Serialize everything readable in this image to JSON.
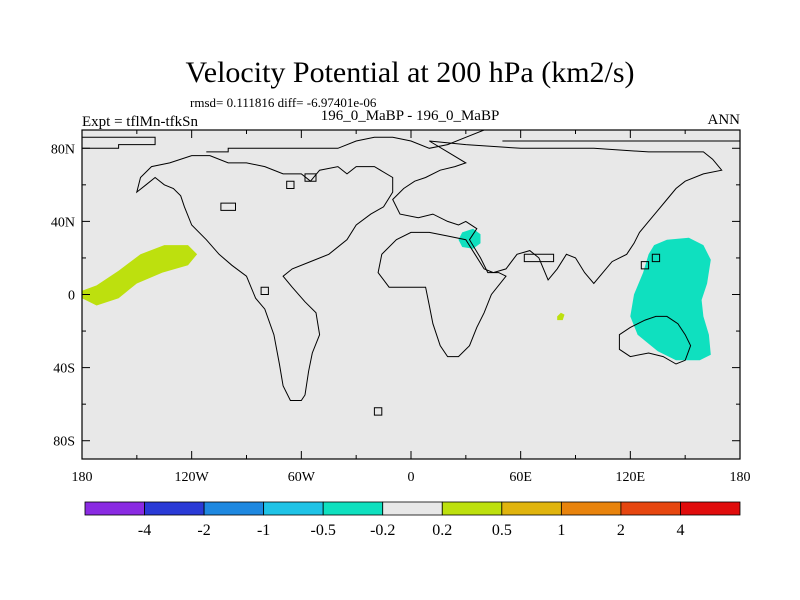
{
  "chart_data": {
    "type": "heatmap",
    "title": "Velocity Potential at 200 hPa (km2/s)",
    "stats_line": "rmsd= 0.111816 diff= -6.97401e-06",
    "left_label": "Expt = tflMn-tfkSn",
    "center_label": "196_0_MaBP - 196_0_MaBP",
    "right_label": "ANN",
    "x_ticks": [
      "180",
      "120W",
      "60W",
      "0",
      "60E",
      "120E",
      "180"
    ],
    "x_tick_values": [
      -180,
      -120,
      -60,
      0,
      60,
      120,
      180
    ],
    "y_ticks": [
      "80N",
      "40N",
      "0",
      "40S",
      "80S"
    ],
    "y_tick_values": [
      80,
      40,
      0,
      -40,
      -80
    ],
    "xlim": [
      -180,
      180
    ],
    "ylim": [
      -90,
      90
    ],
    "colorbar": {
      "colors": [
        "#8a2be2",
        "#2a3ad6",
        "#1e88e0",
        "#1fc3e6",
        "#0fe0bf",
        "#e8e8e8",
        "#bde00e",
        "#e0b40e",
        "#e8830c",
        "#e64610",
        "#e00c0c"
      ],
      "labels": [
        "-4",
        "-2",
        "-1",
        "-0.5",
        "-0.2",
        "0.2",
        "0.5",
        "1",
        "2",
        "4"
      ]
    },
    "background_color": "#e8e8e8",
    "filled_regions": [
      {
        "name": "pacific-positive",
        "level": "0.2 to 0.5",
        "color": "#bde00e",
        "points": [
          [
            -180,
            -2
          ],
          [
            -172,
            -6
          ],
          [
            -160,
            -2
          ],
          [
            -150,
            6
          ],
          [
            -136,
            12
          ],
          [
            -122,
            16
          ],
          [
            -117,
            22
          ],
          [
            -122,
            27
          ],
          [
            -135,
            27
          ],
          [
            -148,
            22
          ],
          [
            -160,
            13
          ],
          [
            -172,
            5
          ],
          [
            -180,
            2
          ]
        ]
      },
      {
        "name": "indian-small-positive",
        "level": "0.2 to 0.5",
        "color": "#bde00e",
        "points": [
          [
            80,
            -12
          ],
          [
            82,
            -10
          ],
          [
            84,
            -11
          ],
          [
            83,
            -14
          ],
          [
            80,
            -14
          ]
        ]
      },
      {
        "name": "mideast-negative",
        "level": "-0.5 to -0.2",
        "color": "#0fe0bf",
        "points": [
          [
            26,
            30
          ],
          [
            28,
            34
          ],
          [
            34,
            36
          ],
          [
            38,
            33
          ],
          [
            38,
            28
          ],
          [
            34,
            25
          ],
          [
            28,
            26
          ]
        ]
      },
      {
        "name": "westpacific-negative",
        "level": "-0.5 to -0.2",
        "color": "#0fe0bf",
        "points": [
          [
            133,
            27
          ],
          [
            140,
            30
          ],
          [
            152,
            31
          ],
          [
            160,
            27
          ],
          [
            164,
            19
          ],
          [
            162,
            6
          ],
          [
            159,
            -3
          ],
          [
            160,
            -12
          ],
          [
            163,
            -22
          ],
          [
            164,
            -33
          ],
          [
            158,
            -36
          ],
          [
            145,
            -36
          ],
          [
            135,
            -31
          ],
          [
            124,
            -22
          ],
          [
            120,
            -12
          ],
          [
            122,
            0
          ],
          [
            127,
            12
          ],
          [
            130,
            22
          ]
        ]
      }
    ],
    "contours": [
      {
        "name": "arctic-coast-top",
        "closed": false,
        "points": [
          [
            -180,
            86
          ],
          [
            -140,
            86
          ],
          [
            -140,
            82
          ],
          [
            -160,
            82
          ],
          [
            -160,
            80
          ],
          [
            -180,
            80
          ]
        ]
      },
      {
        "name": "greenland-arctic",
        "closed": false,
        "points": [
          [
            -112,
            78
          ],
          [
            -100,
            78
          ],
          [
            -100,
            80
          ],
          [
            -40,
            80
          ],
          [
            -30,
            84
          ],
          [
            -20,
            86
          ],
          [
            -10,
            86
          ],
          [
            0,
            84
          ],
          [
            10,
            80
          ],
          [
            20,
            82
          ],
          [
            30,
            86
          ],
          [
            40,
            90
          ]
        ]
      },
      {
        "name": "arctic-coast-east",
        "closed": false,
        "points": [
          [
            50,
            84
          ],
          [
            180,
            84
          ]
        ]
      },
      {
        "name": "americas",
        "closed": true,
        "points": [
          [
            -100,
            72
          ],
          [
            -90,
            72
          ],
          [
            -80,
            70
          ],
          [
            -70,
            66
          ],
          [
            -60,
            66
          ],
          [
            -55,
            62
          ],
          [
            -50,
            68
          ],
          [
            -40,
            70
          ],
          [
            -35,
            66
          ],
          [
            -30,
            70
          ],
          [
            -20,
            70
          ],
          [
            -10,
            64
          ],
          [
            -10,
            56
          ],
          [
            -15,
            48
          ],
          [
            -22,
            44
          ],
          [
            -30,
            38
          ],
          [
            -35,
            30
          ],
          [
            -45,
            22
          ],
          [
            -55,
            18
          ],
          [
            -65,
            14
          ],
          [
            -70,
            10
          ],
          [
            -65,
            4
          ],
          [
            -58,
            -4
          ],
          [
            -52,
            -10
          ],
          [
            -50,
            -22
          ],
          [
            -54,
            -32
          ],
          [
            -56,
            -42
          ],
          [
            -58,
            -55
          ],
          [
            -60,
            -58
          ],
          [
            -66,
            -58
          ],
          [
            -70,
            -50
          ],
          [
            -72,
            -38
          ],
          [
            -75,
            -22
          ],
          [
            -80,
            -8
          ],
          [
            -85,
            -2
          ],
          [
            -90,
            10
          ],
          [
            -98,
            16
          ],
          [
            -105,
            22
          ],
          [
            -112,
            30
          ],
          [
            -120,
            38
          ],
          [
            -124,
            48
          ],
          [
            -126,
            54
          ],
          [
            -130,
            58
          ],
          [
            -135,
            60
          ],
          [
            -140,
            64
          ],
          [
            -145,
            60
          ],
          [
            -150,
            56
          ],
          [
            -148,
            64
          ],
          [
            -142,
            70
          ],
          [
            -132,
            72
          ],
          [
            -120,
            76
          ],
          [
            -110,
            76
          ]
        ]
      },
      {
        "name": "eurasia-africa",
        "closed": true,
        "points": [
          [
            10,
            84
          ],
          [
            30,
            82
          ],
          [
            60,
            80
          ],
          [
            100,
            80
          ],
          [
            130,
            78
          ],
          [
            160,
            78
          ],
          [
            165,
            74
          ],
          [
            170,
            68
          ],
          [
            160,
            66
          ],
          [
            150,
            62
          ],
          [
            145,
            58
          ],
          [
            140,
            52
          ],
          [
            135,
            46
          ],
          [
            130,
            40
          ],
          [
            125,
            34
          ],
          [
            122,
            28
          ],
          [
            118,
            22
          ],
          [
            110,
            18
          ],
          [
            105,
            12
          ],
          [
            100,
            6
          ],
          [
            95,
            12
          ],
          [
            90,
            20
          ],
          [
            85,
            22
          ],
          [
            80,
            14
          ],
          [
            75,
            8
          ],
          [
            70,
            20
          ],
          [
            65,
            24
          ],
          [
            58,
            22
          ],
          [
            52,
            14
          ],
          [
            45,
            12
          ],
          [
            40,
            14
          ],
          [
            35,
            22
          ],
          [
            30,
            30
          ],
          [
            20,
            32
          ],
          [
            10,
            34
          ],
          [
            0,
            34
          ],
          [
            -8,
            30
          ],
          [
            -16,
            22
          ],
          [
            -18,
            12
          ],
          [
            -12,
            4
          ],
          [
            -5,
            4
          ],
          [
            8,
            4
          ],
          [
            10,
            -6
          ],
          [
            12,
            -16
          ],
          [
            16,
            -28
          ],
          [
            20,
            -34
          ],
          [
            26,
            -34
          ],
          [
            32,
            -28
          ],
          [
            36,
            -18
          ],
          [
            40,
            -10
          ],
          [
            44,
            0
          ],
          [
            52,
            10
          ],
          [
            48,
            12
          ],
          [
            42,
            12
          ],
          [
            38,
            20
          ],
          [
            32,
            30
          ],
          [
            36,
            36
          ],
          [
            30,
            40
          ],
          [
            26,
            38
          ],
          [
            20,
            40
          ],
          [
            12,
            44
          ],
          [
            4,
            42
          ],
          [
            -6,
            44
          ],
          [
            -10,
            52
          ],
          [
            -4,
            58
          ],
          [
            2,
            62
          ],
          [
            8,
            64
          ],
          [
            16,
            68
          ],
          [
            24,
            70
          ],
          [
            30,
            72
          ],
          [
            20,
            78
          ]
        ]
      },
      {
        "name": "australia",
        "closed": true,
        "points": [
          [
            114,
            -22
          ],
          [
            120,
            -18
          ],
          [
            128,
            -14
          ],
          [
            134,
            -12
          ],
          [
            140,
            -12
          ],
          [
            146,
            -16
          ],
          [
            150,
            -22
          ],
          [
            153,
            -28
          ],
          [
            150,
            -36
          ],
          [
            145,
            -38
          ],
          [
            138,
            -34
          ],
          [
            130,
            -32
          ],
          [
            120,
            -34
          ],
          [
            114,
            -30
          ]
        ]
      },
      {
        "name": "small-box-1",
        "closed": true,
        "points": [
          [
            -58,
            66
          ],
          [
            -52,
            66
          ],
          [
            -52,
            62
          ],
          [
            -58,
            62
          ]
        ]
      },
      {
        "name": "small-box-2",
        "closed": true,
        "points": [
          [
            -68,
            62
          ],
          [
            -64,
            62
          ],
          [
            -64,
            58
          ],
          [
            -68,
            58
          ]
        ]
      },
      {
        "name": "small-box-3",
        "closed": true,
        "points": [
          [
            -82,
            4
          ],
          [
            -78,
            4
          ],
          [
            -78,
            0
          ],
          [
            -82,
            0
          ]
        ]
      },
      {
        "name": "small-box-4",
        "closed": true,
        "points": [
          [
            -104,
            50
          ],
          [
            -96,
            50
          ],
          [
            -96,
            46
          ],
          [
            -104,
            46
          ]
        ]
      },
      {
        "name": "small-box-5",
        "closed": true,
        "points": [
          [
            132,
            22
          ],
          [
            136,
            22
          ],
          [
            136,
            18
          ],
          [
            132,
            18
          ]
        ]
      },
      {
        "name": "small-box-6",
        "closed": true,
        "points": [
          [
            126,
            18
          ],
          [
            130,
            18
          ],
          [
            130,
            14
          ],
          [
            126,
            14
          ]
        ]
      },
      {
        "name": "small-box-7",
        "closed": true,
        "points": [
          [
            62,
            22
          ],
          [
            78,
            22
          ],
          [
            78,
            18
          ],
          [
            62,
            18
          ]
        ]
      },
      {
        "name": "small-box-8",
        "closed": true,
        "points": [
          [
            -20,
            -62
          ],
          [
            -16,
            -62
          ],
          [
            -16,
            -66
          ],
          [
            -20,
            -66
          ]
        ]
      }
    ]
  }
}
